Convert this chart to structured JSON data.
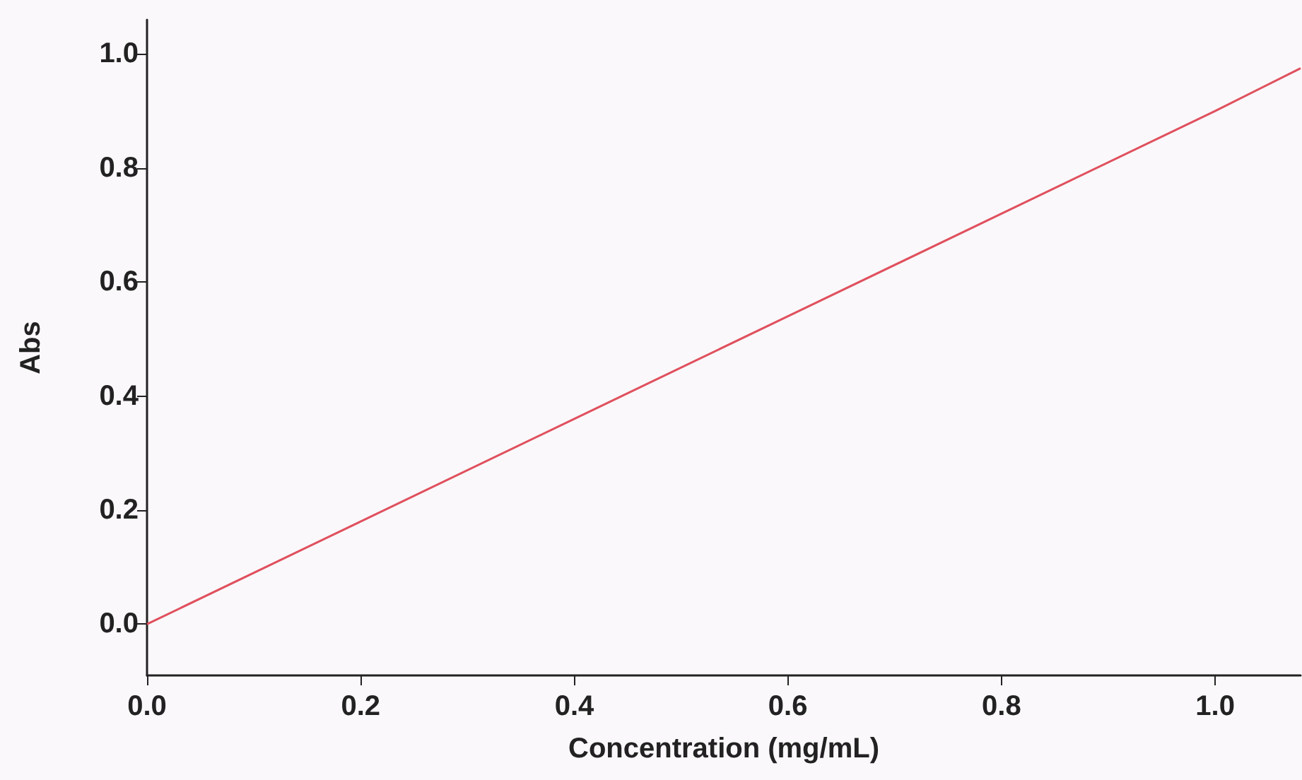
{
  "chart_data": {
    "type": "line",
    "xlabel": "Concentration (mg/mL)",
    "ylabel": "Abs",
    "x": [
      0,
      0.2,
      0.4,
      0.6,
      0.8,
      1.0,
      1.08
    ],
    "series": [
      {
        "color": "#e0505e",
        "values": [
          0,
          0.18,
          0.36,
          0.54,
          0.72,
          0.9,
          0.975
        ]
      }
    ],
    "xlim": [
      0,
      1.08
    ],
    "xticks": [
      {
        "value": 0,
        "label": "0.0"
      },
      {
        "value": 0.2,
        "label": "0.2"
      },
      {
        "value": 0.4,
        "label": "0.4"
      },
      {
        "value": 0.6,
        "label": "0.6"
      },
      {
        "value": 0.8,
        "label": "0.8"
      },
      {
        "value": 1,
        "label": "1.0"
      }
    ],
    "ylim": [
      -0.09,
      1.06
    ],
    "yticks": [
      {
        "value": 0,
        "label": "0.0"
      },
      {
        "value": 0.2,
        "label": "0.2"
      },
      {
        "value": 0.4,
        "label": "0.4"
      },
      {
        "value": 0.6,
        "label": "0.6"
      },
      {
        "value": 0.8,
        "label": "0.8"
      },
      {
        "value": 1,
        "label": "1.0"
      }
    ],
    "grid": false,
    "marker": "none",
    "line_style": "solid"
  }
}
